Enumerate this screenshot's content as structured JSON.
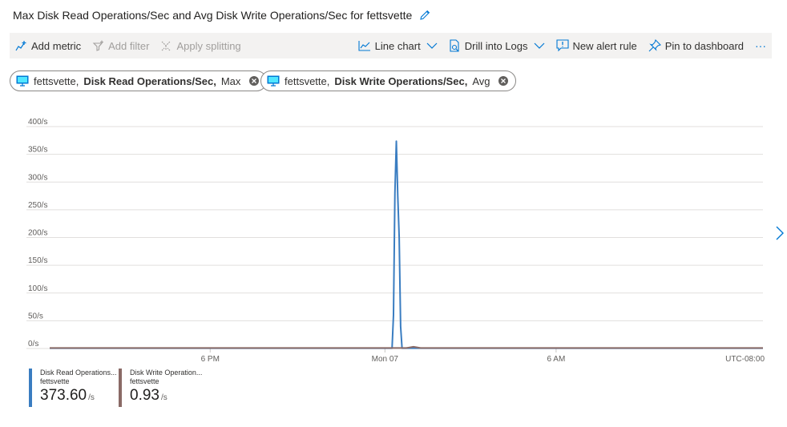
{
  "title": "Max Disk Read Operations/Sec and Avg Disk Write Operations/Sec for fettsvette",
  "toolbar": {
    "add_metric": "Add metric",
    "add_filter": "Add filter",
    "apply_splitting": "Apply splitting",
    "line_chart": "Line chart",
    "drill_into_logs": "Drill into Logs",
    "new_alert_rule": "New alert rule",
    "pin_to_dashboard": "Pin to dashboard",
    "more": "···"
  },
  "pills": [
    {
      "resource": "fettsvette,",
      "metric": "Disk Read Operations/Sec,",
      "agg": "Max"
    },
    {
      "resource": "fettsvette,",
      "metric": "Disk Write Operations/Sec,",
      "agg": "Avg"
    }
  ],
  "chart_data": {
    "type": "line",
    "y_ticks": [
      "400/s",
      "350/s",
      "300/s",
      "250/s",
      "200/s",
      "150/s",
      "100/s",
      "50/s",
      "0/s"
    ],
    "ylim": [
      0,
      400
    ],
    "x_ticks": [
      "6 PM",
      "Mon 07",
      "6 AM",
      "UTC-08:00"
    ],
    "series": [
      {
        "name": "Disk Read Operations...",
        "color": "#3a7dc1",
        "points": [
          [
            0,
            0.5
          ],
          [
            0.48,
            0.5
          ],
          [
            0.482,
            60
          ],
          [
            0.484,
            280
          ],
          [
            0.486,
            373.6
          ],
          [
            0.488,
            275
          ],
          [
            0.49,
            200
          ],
          [
            0.492,
            40
          ],
          [
            0.494,
            0.5
          ],
          [
            1,
            0.5
          ]
        ]
      },
      {
        "name": "Disk Write Operation...",
        "color": "#8a6a66",
        "points": [
          [
            0,
            0.9
          ],
          [
            0.5,
            0.9
          ],
          [
            0.51,
            3
          ],
          [
            0.52,
            0.9
          ],
          [
            1,
            0.9
          ]
        ]
      }
    ]
  },
  "legend": [
    {
      "name": "Disk Read Operations...",
      "resource": "fettsvette",
      "value": "373.60",
      "unit": "/s",
      "color": "#3a7dc1"
    },
    {
      "name": "Disk Write Operation...",
      "resource": "fettsvette",
      "value": "0.93",
      "unit": "/s",
      "color": "#8a6a66"
    }
  ]
}
